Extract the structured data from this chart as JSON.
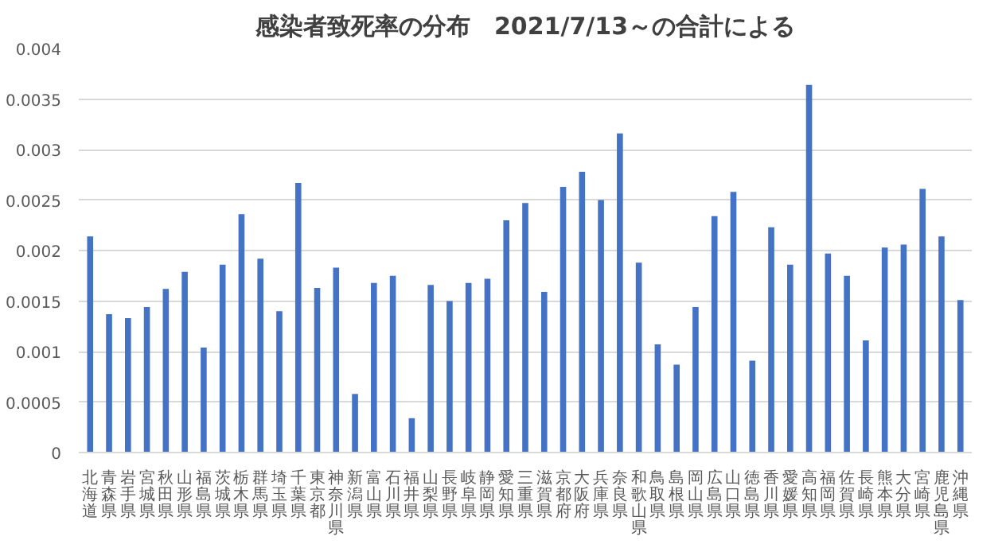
{
  "chart_data": {
    "type": "bar",
    "title": "感染者致死率の分布　2021/7/13～の合計による",
    "categories": [
      "北海道",
      "青森県",
      "岩手県",
      "宮城県",
      "秋田県",
      "山形県",
      "福島県",
      "茨城県",
      "栃木県",
      "群馬県",
      "埼玉県",
      "千葉県",
      "東京都",
      "神奈川県",
      "新潟県",
      "富山県",
      "石川県",
      "福井県",
      "山梨県",
      "長野県",
      "岐阜県",
      "静岡県",
      "愛知県",
      "三重県",
      "滋賀県",
      "京都府",
      "大阪府",
      "兵庫県",
      "奈良県",
      "和歌山県",
      "鳥取県",
      "島根県",
      "岡山県",
      "広島県",
      "山口県",
      "徳島県",
      "香川県",
      "愛媛県",
      "高知県",
      "福岡県",
      "佐賀県",
      "長崎県",
      "熊本県",
      "大分県",
      "宮崎県",
      "鹿児島県",
      "沖縄県"
    ],
    "values": [
      0.00214,
      0.00137,
      0.00133,
      0.00144,
      0.00162,
      0.00179,
      0.00104,
      0.00186,
      0.00236,
      0.00192,
      0.0014,
      0.00267,
      0.00163,
      0.00183,
      0.00058,
      0.00168,
      0.00175,
      0.00034,
      0.00166,
      0.0015,
      0.00168,
      0.00172,
      0.0023,
      0.00247,
      0.00159,
      0.00263,
      0.00278,
      0.0025,
      0.00316,
      0.00188,
      0.00107,
      0.00087,
      0.00144,
      0.00234,
      0.00258,
      0.00091,
      0.00223,
      0.00186,
      0.00364,
      0.00197,
      0.00175,
      0.00111,
      0.00203,
      0.00206,
      0.00261,
      0.00214,
      0.00151
    ],
    "color": "#4472c4",
    "ylim": [
      0,
      0.004
    ],
    "yticks": [
      0,
      0.0005,
      0.001,
      0.0015,
      0.002,
      0.0025,
      0.003,
      0.0035,
      0.004
    ],
    "grid": "y"
  }
}
